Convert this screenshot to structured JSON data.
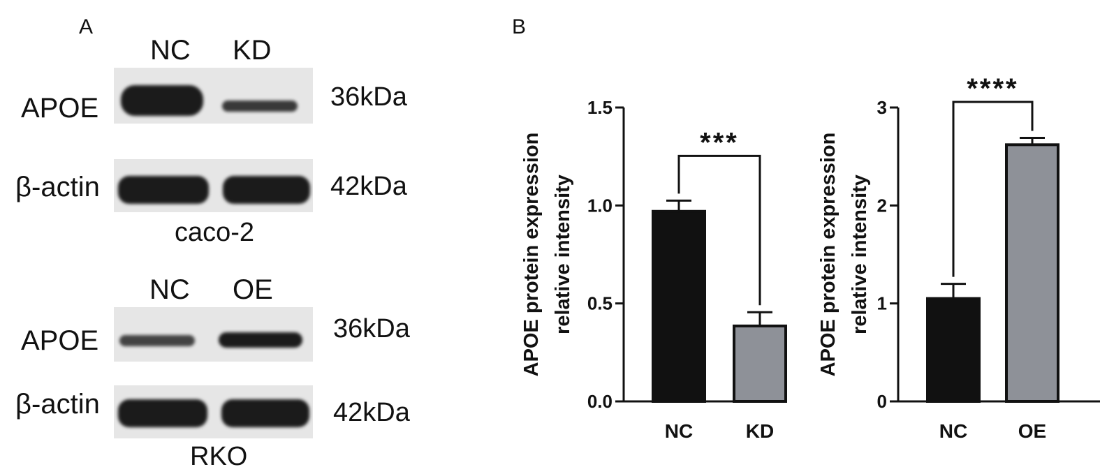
{
  "panel_a": {
    "letter": "A",
    "caco2": {
      "lanes": [
        "NC",
        "KD"
      ],
      "target_label": "APOE",
      "target_kda": "36kDa",
      "loading_label": "β-actin",
      "loading_kda": "42kDa",
      "cell_line": "caco-2"
    },
    "rko": {
      "lanes": [
        "NC",
        "OE"
      ],
      "target_label": "APOE",
      "target_kda": "36kDa",
      "loading_label": "β-actin",
      "loading_kda": "42kDa",
      "cell_line": "RKO"
    }
  },
  "panel_b": {
    "letter": "B"
  },
  "chart_data": [
    {
      "type": "bar",
      "categories": [
        "NC",
        "KD"
      ],
      "values": [
        0.97,
        0.385
      ],
      "errors": [
        0.055,
        0.07
      ],
      "colors": [
        "#111111",
        "#8e9198"
      ],
      "ylabel": "APOE protein expression relative intensity",
      "ylim": [
        0,
        1.5
      ],
      "yticks": [
        0.0,
        0.5,
        1.0,
        1.5
      ],
      "ytick_labels": [
        "0.0",
        "0.5",
        "1.0",
        "1.5"
      ],
      "significance": "***",
      "grid": false
    },
    {
      "type": "bar",
      "categories": [
        "NC",
        "OE"
      ],
      "values": [
        1.05,
        2.62
      ],
      "errors": [
        0.15,
        0.07
      ],
      "colors": [
        "#111111",
        "#8e9198"
      ],
      "ylabel": "APOE protein expression relative intensity",
      "ylim": [
        0,
        3
      ],
      "yticks": [
        0,
        1,
        2,
        3
      ],
      "ytick_labels": [
        "0",
        "1",
        "2",
        "3"
      ],
      "significance": "****",
      "grid": false
    }
  ]
}
